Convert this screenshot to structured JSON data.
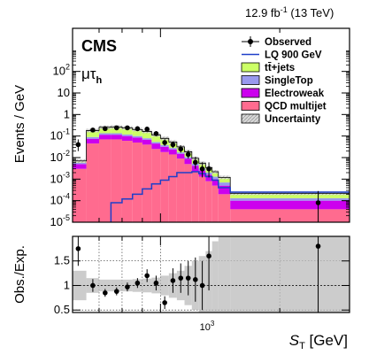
{
  "chart_data": {
    "type": "histogram",
    "lumi": "12.9 fb",
    "lumi_exp": "-1",
    "lumi_energy": " (13 TeV)",
    "experiment": "CMS",
    "channel_main": "μτ",
    "channel_sub": "h",
    "ylabel_top": "Events / GeV",
    "ylabel_bottom": "Obs./Exp.",
    "xlabel_main": "S",
    "xlabel_sub": "T",
    "xlabel_unit": " [GeV]",
    "x_tick_label_base": "10",
    "x_tick_label_exp": "3",
    "x_log_range": [
      600,
      3000
    ],
    "y_top_log_range": [
      1e-05,
      10000
    ],
    "y_top_ticks": [
      {
        "base": "10",
        "exp": "-5",
        "value": 1e-05
      },
      {
        "base": "10",
        "exp": "-4",
        "value": 0.0001
      },
      {
        "base": "10",
        "exp": "-3",
        "value": 0.001
      },
      {
        "base": "10",
        "exp": "-2",
        "value": 0.01
      },
      {
        "base": "10",
        "exp": "-1",
        "value": 0.1
      },
      {
        "base": "1",
        "exp": "",
        "value": 1
      },
      {
        "base": "10",
        "exp": "",
        "value": 10
      },
      {
        "base": "10",
        "exp": "2",
        "value": 100
      }
    ],
    "y_ratio_range": [
      0.45,
      2.0
    ],
    "y_ratio_ticks": [
      "0.5",
      "1",
      "1.5"
    ],
    "bin_edges": [
      600,
      650,
      700,
      750,
      800,
      850,
      900,
      950,
      1000,
      1050,
      1100,
      1150,
      1200,
      1250,
      1300,
      1350,
      1400,
      1500,
      3000
    ],
    "legend": [
      {
        "label": "Observed",
        "kind": "marker"
      },
      {
        "label": "LQ 900 GeV",
        "kind": "line",
        "color": "#1f3fc9"
      },
      {
        "label": "tt̄+jets",
        "kind": "fill",
        "color": "#ccff66"
      },
      {
        "label": "SingleTop",
        "kind": "fill",
        "color": "#9999ee"
      },
      {
        "label": "Electroweak",
        "kind": "fill",
        "color": "#cc00ee"
      },
      {
        "label": "QCD multijet",
        "kind": "fill",
        "color": "#ff6b8f"
      },
      {
        "label": "Uncertainty",
        "kind": "hatch",
        "color": "#bbbbbb"
      }
    ],
    "stack": {
      "qcd": [
        0.003,
        0.045,
        0.07,
        0.07,
        0.06,
        0.05,
        0.04,
        0.025,
        0.018,
        0.014,
        0.009,
        0.005,
        0.0022,
        0.0013,
        0.0008,
        0.0005,
        0.0002,
        4e-05
      ],
      "electroweak": [
        0.002,
        0.03,
        0.045,
        0.045,
        0.04,
        0.035,
        0.028,
        0.02,
        0.014,
        0.01,
        0.006,
        0.004,
        0.002,
        0.0012,
        0.0008,
        0.0005,
        0.0003,
        6e-05
      ],
      "singletop": [
        0.0008,
        0.015,
        0.02,
        0.02,
        0.018,
        0.015,
        0.011,
        0.008,
        0.006,
        0.004,
        0.0025,
        0.0016,
        0.001,
        0.0006,
        0.0004,
        0.0003,
        0.0002,
        3e-05
      ],
      "ttjets": [
        0.0012,
        0.09,
        0.12,
        0.13,
        0.12,
        0.1,
        0.085,
        0.06,
        0.04,
        0.025,
        0.014,
        0.008,
        0.004,
        0.0024,
        0.0014,
        0.0009,
        0.0005,
        9e-05
      ]
    },
    "signal_lq900": [
      7e-06,
      7e-06,
      7e-06,
      8e-05,
      0.00012,
      0.0002,
      0.00035,
      0.0006,
      0.0009,
      0.0013,
      0.002,
      0.002,
      0.0022,
      0.0018,
      0.0013,
      0.0009,
      0.0004,
      0.00025
    ],
    "observed": [
      {
        "x": 620,
        "y": 0.04,
        "yerr_lo": 0.02,
        "yerr_hi": 0.03,
        "ratio": 1.75,
        "rerr": 0.35
      },
      {
        "x": 675,
        "y": 0.19,
        "yerr_lo": 0.04,
        "yerr_hi": 0.05,
        "ratio": 1.0,
        "rerr": 0.13
      },
      {
        "x": 725,
        "y": 0.22,
        "yerr_lo": 0.045,
        "yerr_hi": 0.05,
        "ratio": 0.85,
        "rerr": 0.08
      },
      {
        "x": 775,
        "y": 0.24,
        "yerr_lo": 0.045,
        "yerr_hi": 0.05,
        "ratio": 0.88,
        "rerr": 0.08
      },
      {
        "x": 825,
        "y": 0.24,
        "yerr_lo": 0.05,
        "yerr_hi": 0.05,
        "ratio": 0.97,
        "rerr": 0.09
      },
      {
        "x": 875,
        "y": 0.22,
        "yerr_lo": 0.05,
        "yerr_hi": 0.05,
        "ratio": 1.05,
        "rerr": 0.1
      },
      {
        "x": 925,
        "y": 0.21,
        "yerr_lo": 0.05,
        "yerr_hi": 0.05,
        "ratio": 1.2,
        "rerr": 0.13
      },
      {
        "x": 975,
        "y": 0.13,
        "yerr_lo": 0.03,
        "yerr_hi": 0.04,
        "ratio": 1.05,
        "rerr": 0.15
      },
      {
        "x": 1025,
        "y": 0.05,
        "yerr_lo": 0.015,
        "yerr_hi": 0.02,
        "ratio": 0.65,
        "rerr": 0.13
      },
      {
        "x": 1075,
        "y": 0.04,
        "yerr_lo": 0.012,
        "yerr_hi": 0.016,
        "ratio": 1.1,
        "rerr": 0.25
      },
      {
        "x": 1125,
        "y": 0.025,
        "yerr_lo": 0.008,
        "yerr_hi": 0.012,
        "ratio": 1.15,
        "rerr": 0.3
      },
      {
        "x": 1175,
        "y": 0.014,
        "yerr_lo": 0.005,
        "yerr_hi": 0.008,
        "ratio": 1.15,
        "rerr": 0.35
      },
      {
        "x": 1225,
        "y": 0.006,
        "yerr_lo": 0.003,
        "yerr_hi": 0.005,
        "ratio": 1.12,
        "rerr": 0.45
      },
      {
        "x": 1275,
        "y": 0.003,
        "yerr_lo": 0.0018,
        "yerr_hi": 0.003,
        "ratio": 1.0,
        "rerr": 0.5
      },
      {
        "x": 1325,
        "y": 0.003,
        "yerr_lo": 0.0018,
        "yerr_hi": 0.003,
        "ratio": 1.6,
        "rerr": 0.7
      },
      {
        "x": 2500,
        "y": 8e-05,
        "yerr_lo": 7e-05,
        "yerr_hi": 0.0002,
        "ratio": 1.8,
        "rerr": 1.8
      }
    ]
  }
}
